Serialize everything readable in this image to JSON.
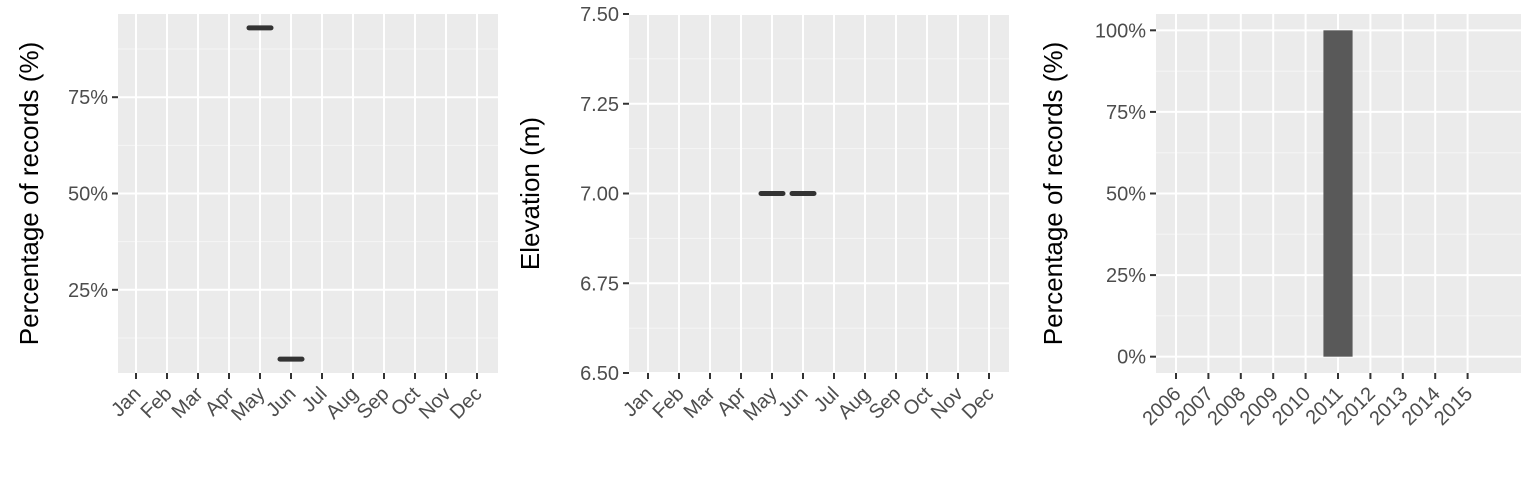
{
  "chart_data": [
    {
      "type": "scatter",
      "marker": "horizontal-segment",
      "ylabel": "Percentage of records (%)",
      "xlabel": "",
      "categories": [
        "Jan",
        "Feb",
        "Mar",
        "Apr",
        "May",
        "Jun",
        "Jul",
        "Aug",
        "Sep",
        "Oct",
        "Nov",
        "Dec"
      ],
      "ylim": [
        0.034,
        0.966
      ],
      "y_ticks": [
        0.25,
        0.5,
        0.75
      ],
      "y_tick_labels": [
        "25%",
        "50%",
        "75%"
      ],
      "points": [
        {
          "x": "May",
          "y": 0.93
        },
        {
          "x": "Jun",
          "y": 0.07
        }
      ],
      "grid": true,
      "color": "#333333"
    },
    {
      "type": "scatter",
      "marker": "horizontal-segment",
      "ylabel": "Elevation (m)",
      "xlabel": "",
      "categories": [
        "Jan",
        "Feb",
        "Mar",
        "Apr",
        "May",
        "Jun",
        "Jul",
        "Aug",
        "Sep",
        "Oct",
        "Nov",
        "Dec"
      ],
      "ylim": [
        6.5,
        7.5
      ],
      "y_ticks": [
        6.5,
        6.75,
        7.0,
        7.25,
        7.5
      ],
      "y_tick_labels": [
        "6.50",
        "6.75",
        "7.00",
        "7.25",
        "7.50"
      ],
      "points": [
        {
          "x": "May",
          "y": 7.0
        },
        {
          "x": "Jun",
          "y": 7.0
        }
      ],
      "grid": true,
      "color": "#333333"
    },
    {
      "type": "bar",
      "ylabel": "Percentage of records (%)",
      "xlabel": "",
      "categories": [
        "2006",
        "2007",
        "2008",
        "2009",
        "2010",
        "2011",
        "2012",
        "2013",
        "2014",
        "2015"
      ],
      "values": [
        0,
        0,
        0,
        0,
        0,
        1.0,
        0,
        0,
        0,
        0
      ],
      "ylim": [
        -0.05,
        1.05
      ],
      "y_ticks": [
        0,
        0.25,
        0.5,
        0.75,
        1.0
      ],
      "y_tick_labels": [
        "0%",
        "25%",
        "50%",
        "75%",
        "100%"
      ],
      "grid": true,
      "color": "#595959"
    }
  ]
}
